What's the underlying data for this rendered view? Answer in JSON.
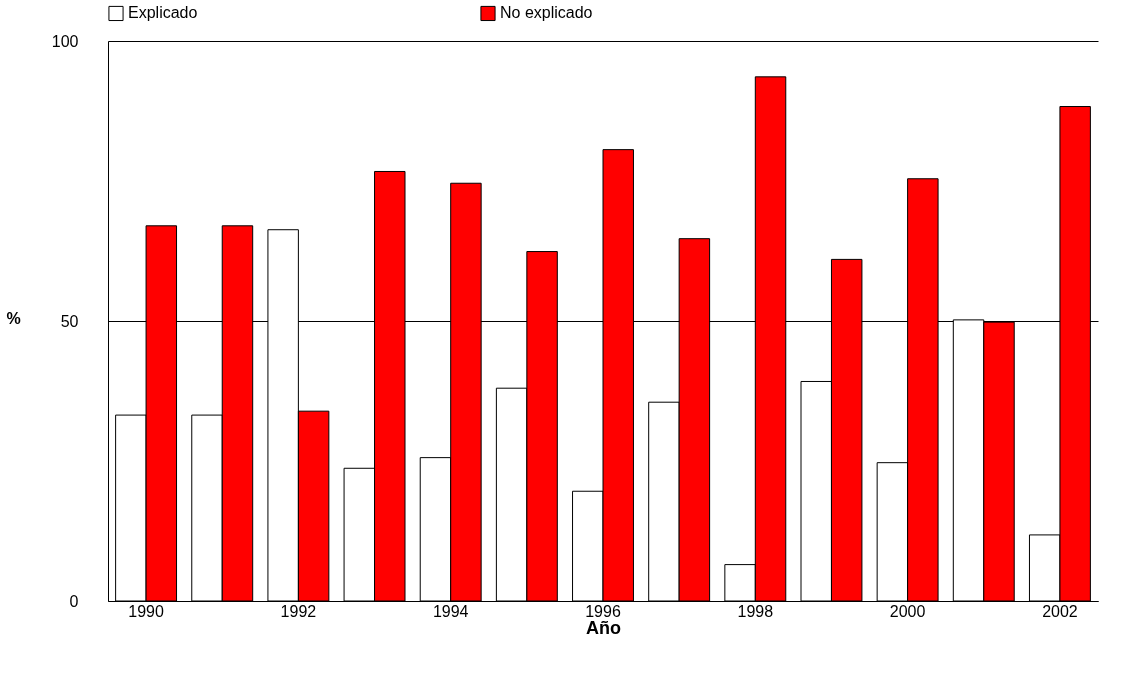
{
  "chart_data": {
    "type": "bar",
    "xlabel": "Año",
    "ylabel": "%",
    "categories": [
      "1990",
      null,
      "1992",
      null,
      "1994",
      null,
      "1996",
      null,
      "1998",
      null,
      "2000",
      null,
      "2002"
    ],
    "series": [
      {
        "name": "Explicado",
        "color": "#ffffff",
        "values": [
          33.2,
          33.2,
          66.3,
          23.7,
          25.6,
          38.0,
          19.6,
          35.5,
          6.5,
          39.2,
          24.7,
          50.2,
          11.8
        ]
      },
      {
        "name": "No explicado",
        "color": "#ff0000",
        "values": [
          67.0,
          67.0,
          33.9,
          76.7,
          74.6,
          62.4,
          80.6,
          64.7,
          93.6,
          61.0,
          75.4,
          49.8,
          88.3
        ]
      }
    ],
    "ylim": [
      0,
      100
    ],
    "yticks": [
      0,
      50,
      100
    ],
    "grid": "y",
    "legend": "top"
  }
}
